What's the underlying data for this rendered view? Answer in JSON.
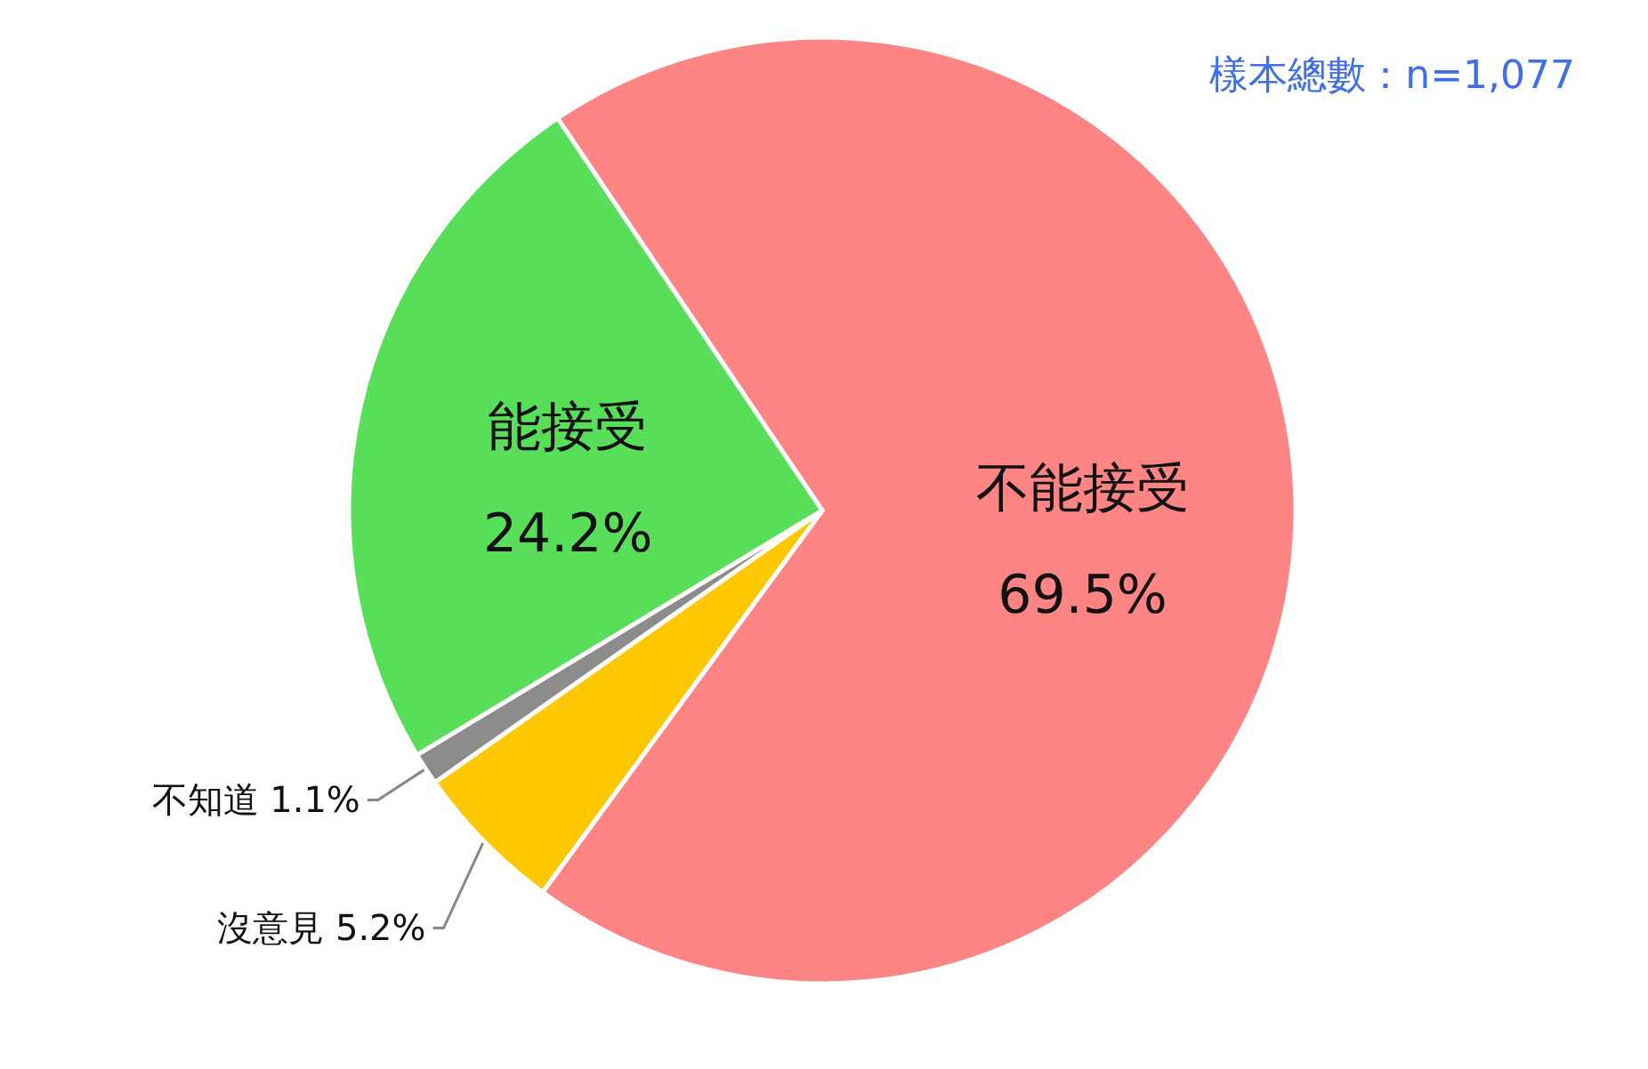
{
  "chart_data": {
    "type": "pie",
    "categories": [
      "不能接受",
      "沒意見",
      "不知道",
      "能接受"
    ],
    "values": [
      69.5,
      5.2,
      1.1,
      24.2
    ],
    "value_labels": [
      "69.5%",
      "5.2%",
      "1.1%",
      "24.2%"
    ],
    "colors": [
      "#ff8585",
      "#ffc800",
      "#8c8c8c",
      "#59de59"
    ],
    "annotations": [
      "樣本總數：n=1,077"
    ]
  }
}
